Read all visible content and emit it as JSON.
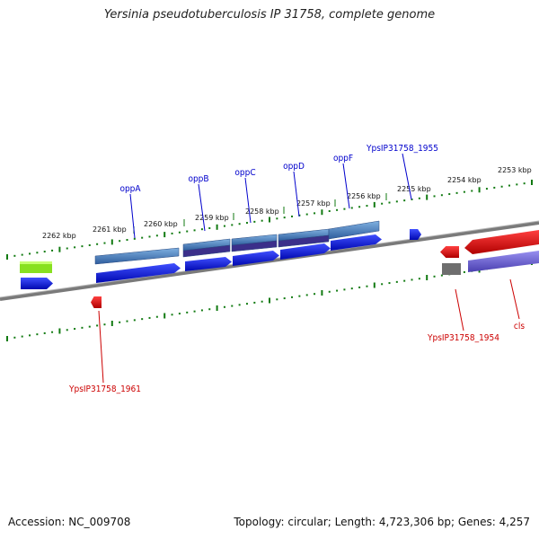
{
  "title": "Yersinia pseudotuberculosis IP 31758, complete genome",
  "footer": {
    "accession": "Accession: NC_009708",
    "summary": "Topology: circular; Length: 4,723,306 bp; Genes: 4,257"
  },
  "colors": {
    "forward_cds": "#0a14e6",
    "reverse_cds": "#e00000",
    "gene_block": "#3f74b4",
    "gene_block_dark": "#3b2f8a",
    "lavender": "#6b5fd0",
    "green": "#88e020",
    "gray": "#6e6e6e",
    "tick_green": "#117a11",
    "label_blue": "#0000cc",
    "label_red": "#cc0000",
    "backbone": "#7a7a7a"
  },
  "kbp_labels": [
    "2262 kbp",
    "2261 kbp",
    "2260 kbp",
    "2259 kbp",
    "2258 kbp",
    "2257 kbp",
    "2256 kbp",
    "2255 kbp",
    "2254 kbp",
    "2253 kbp"
  ],
  "forward_labels": [
    "oppA",
    "oppB",
    "oppC",
    "oppD",
    "oppF",
    "YpsIP31758_1955"
  ],
  "reverse_labels": [
    "YpsIP31758_1961",
    "YpsIP31758_1954",
    "cls"
  ]
}
